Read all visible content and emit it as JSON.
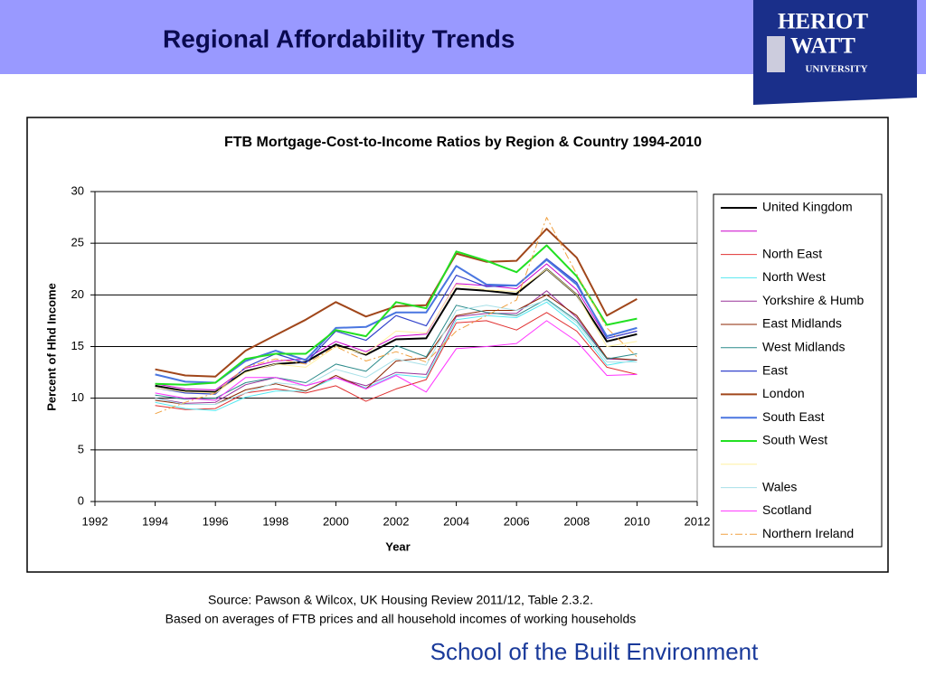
{
  "slide": {
    "title": "Regional Affordability Trends",
    "source": [
      "Source: Pawson & Wilcox, UK Housing Review 2011/12, Table 2.3.2.",
      "Based on averages of FTB prices and all household incomes of working households"
    ],
    "footer": "School of the Built Environment",
    "logo": [
      "HERIOT",
      "WATT",
      "UNIVERSITY"
    ]
  },
  "chart_data": {
    "type": "line",
    "title": "FTB Mortgage-Cost-to-Income Ratios by Region & Country 1994-2010",
    "x_label": "Year",
    "y_label": "Percent of Hhd Income",
    "x": [
      1994,
      1995,
      1996,
      1997,
      1998,
      1999,
      2000,
      2001,
      2002,
      2003,
      2004,
      2005,
      2006,
      2007,
      2008,
      2009,
      2010
    ],
    "xlim": [
      1992,
      2012
    ],
    "xticks": [
      1992,
      1994,
      1996,
      1998,
      2000,
      2002,
      2004,
      2006,
      2008,
      2010,
      2012
    ],
    "ylim": [
      0,
      30
    ],
    "yticks": [
      0,
      5,
      10,
      15,
      20,
      25,
      30
    ],
    "grid": true,
    "legend": "right",
    "series": [
      {
        "name": "United Kingdom",
        "color": "#000000",
        "width": 2,
        "values": [
          11.2,
          10.7,
          10.6,
          12.6,
          13.3,
          13.5,
          15.2,
          14.2,
          15.7,
          15.8,
          20.6,
          20.4,
          20.1,
          22.5,
          20.0,
          15.5,
          16.2
        ]
      },
      {
        "name": null,
        "color": "#cc00cc",
        "width": 1,
        "values": [
          11.4,
          10.9,
          10.8,
          12.9,
          13.6,
          13.8,
          15.5,
          14.5,
          16.0,
          16.2,
          21.1,
          20.9,
          20.6,
          23.0,
          20.5,
          15.8,
          16.5
        ]
      },
      {
        "name": "North East",
        "color": "#e03030",
        "width": 1,
        "values": [
          9.3,
          8.9,
          9.0,
          10.5,
          10.9,
          10.5,
          11.2,
          9.7,
          10.9,
          11.8,
          17.3,
          17.5,
          16.6,
          18.3,
          16.5,
          13.0,
          12.3
        ]
      },
      {
        "name": "North West",
        "color": "#55e8f0",
        "width": 1,
        "values": [
          9.6,
          9.0,
          8.8,
          10.1,
          10.7,
          10.7,
          12.0,
          11.0,
          12.3,
          12.0,
          17.6,
          18.0,
          17.8,
          19.3,
          17.0,
          13.2,
          13.7
        ]
      },
      {
        "name": "Yorkshire & Humb",
        "color": "#993399",
        "width": 1,
        "values": [
          10.0,
          9.5,
          9.6,
          11.3,
          12.0,
          11.2,
          12.0,
          11.2,
          12.5,
          12.3,
          17.9,
          18.2,
          18.2,
          20.4,
          17.8,
          13.8,
          13.7
        ]
      },
      {
        "name": "East Midlands",
        "color": "#8b2500",
        "width": 1,
        "values": [
          9.8,
          9.4,
          9.4,
          10.8,
          11.4,
          10.7,
          12.2,
          10.9,
          13.6,
          13.9,
          18.0,
          18.5,
          18.5,
          20.0,
          18.0,
          13.9,
          13.7
        ]
      },
      {
        "name": "West Midlands",
        "color": "#2a8a8a",
        "width": 1,
        "values": [
          10.3,
          9.9,
          10.0,
          11.5,
          12.0,
          11.5,
          13.3,
          12.6,
          15.1,
          14.0,
          19.0,
          18.3,
          18.0,
          19.6,
          17.5,
          13.8,
          14.3
        ]
      },
      {
        "name": "East",
        "color": "#3344cc",
        "width": 1.2,
        "values": [
          11.0,
          10.5,
          10.4,
          13.0,
          14.3,
          13.4,
          16.5,
          15.6,
          18.0,
          17.0,
          21.9,
          20.8,
          20.9,
          23.5,
          21.2,
          15.8,
          16.5
        ]
      },
      {
        "name": "London",
        "color": "#a0461a",
        "width": 2,
        "values": [
          12.8,
          12.2,
          12.1,
          14.6,
          16.1,
          17.6,
          19.3,
          17.9,
          18.9,
          19.0,
          24.0,
          23.2,
          23.3,
          26.4,
          23.6,
          18.0,
          19.6
        ]
      },
      {
        "name": "South East",
        "color": "#4a76e0",
        "width": 2,
        "values": [
          12.3,
          11.6,
          11.5,
          13.6,
          14.6,
          13.7,
          16.8,
          16.9,
          18.3,
          18.3,
          22.8,
          21.0,
          20.9,
          23.4,
          21.0,
          16.0,
          16.8
        ]
      },
      {
        "name": "South West",
        "color": "#22e022",
        "width": 2,
        "values": [
          11.4,
          11.3,
          11.5,
          13.8,
          14.3,
          14.3,
          16.6,
          16.0,
          19.3,
          18.7,
          24.2,
          23.3,
          22.2,
          24.8,
          21.8,
          17.1,
          17.7
        ]
      },
      {
        "name": null,
        "color": "#fff0a0",
        "width": 1,
        "values": [
          11.0,
          10.6,
          10.5,
          12.5,
          13.3,
          13.0,
          15.0,
          14.3,
          16.5,
          16.3,
          21.0,
          20.5,
          20.3,
          22.5,
          20.0,
          15.0,
          15.5
        ]
      },
      {
        "name": "Wales",
        "color": "#a8e0e8",
        "width": 1,
        "values": [
          10.0,
          9.4,
          9.4,
          10.5,
          11.5,
          11.2,
          12.8,
          12.0,
          13.8,
          13.2,
          18.5,
          19.0,
          18.5,
          19.5,
          17.3,
          13.5,
          13.5
        ]
      },
      {
        "name": "Scotland",
        "color": "#ff33ff",
        "width": 1,
        "values": [
          10.5,
          10.0,
          9.8,
          12.0,
          12.0,
          11.2,
          12.0,
          10.9,
          12.2,
          10.6,
          14.8,
          15.0,
          15.3,
          17.5,
          15.5,
          12.2,
          12.3
        ]
      },
      {
        "name": "Northern Ireland",
        "color": "#f0a040",
        "width": 1,
        "dash": "dash-dot",
        "values": [
          8.5,
          9.6,
          10.5,
          13.0,
          13.8,
          13.3,
          15.0,
          13.6,
          14.5,
          13.5,
          16.5,
          18.0,
          19.5,
          27.5,
          22.0,
          16.8,
          14.0
        ]
      }
    ]
  }
}
